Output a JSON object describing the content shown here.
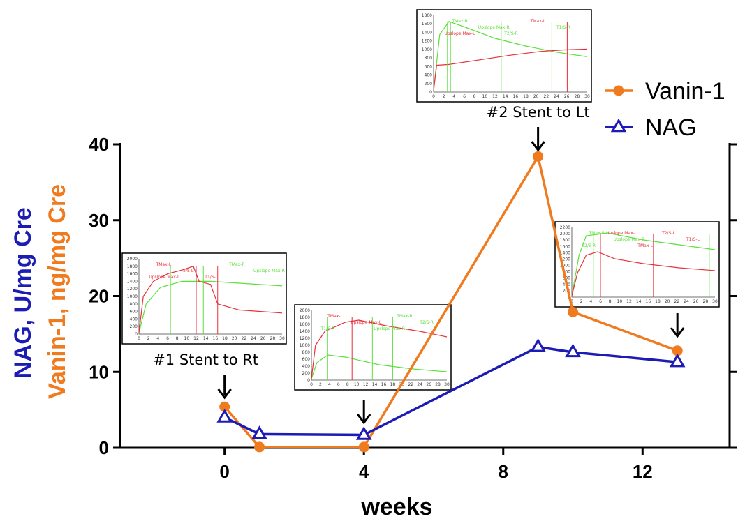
{
  "colors": {
    "vanin": "#F07A1E",
    "nag": "#1C1CB4",
    "axis": "#000000",
    "inset_green": "#5CE03A",
    "inset_red": "#E8303A"
  },
  "chart_data": {
    "type": "line",
    "xlabel": "weeks",
    "ylabel_parts": [
      {
        "text": "NAG, U/mg Cre",
        "color": "#1C1CB4"
      },
      {
        "text": "Vanin-1, ng/mg Cre",
        "color": "#F07A1E"
      }
    ],
    "xlim": [
      -3,
      14.5
    ],
    "ylim": [
      0,
      40
    ],
    "x_ticks": [
      0,
      4,
      8,
      12
    ],
    "y_ticks": [
      0,
      10,
      20,
      30,
      40
    ],
    "legend_position": "top-right",
    "series": [
      {
        "name": "Vanin-1",
        "marker": "circle",
        "color": "#F07A1E",
        "x": [
          0,
          1,
          4,
          9,
          10,
          13
        ],
        "y": [
          5.4,
          0.1,
          0.1,
          38.4,
          17.9,
          12.8
        ]
      },
      {
        "name": "NAG",
        "marker": "triangle-open",
        "color": "#1C1CB4",
        "x": [
          0,
          1,
          4,
          9,
          10,
          13
        ],
        "y": [
          4.0,
          1.8,
          1.7,
          13.3,
          12.6,
          11.3
        ]
      }
    ],
    "annotations": [
      {
        "label": "#1 Stent to Rt",
        "x": 0
      },
      {
        "label": "",
        "x": 4
      },
      {
        "label": "#2 Stent to Lt",
        "x": 9
      },
      {
        "label": "",
        "x": 13
      }
    ],
    "insets": [
      {
        "id": "inset1",
        "y_ticks": [
          "0",
          "200",
          "400",
          "600",
          "800",
          "1000",
          "1200",
          "1400",
          "1600",
          "1800",
          "2000"
        ],
        "x_ticks": [
          "0",
          "2",
          "4",
          "6",
          "8",
          "10",
          "12",
          "14",
          "16",
          "18",
          "20",
          "22",
          "24",
          "26",
          "28",
          "30"
        ],
        "markers": [
          "TMax-L",
          "T2/S-L",
          "T1/S-L",
          "TMax-R",
          "Upslope Max-R",
          "Upslope Max-L"
        ]
      },
      {
        "id": "inset2",
        "y_ticks": [
          "0",
          "200",
          "400",
          "600",
          "800",
          "1000",
          "1200",
          "1400",
          "1600",
          "1800",
          "2000"
        ],
        "x_ticks": [
          "0",
          "2",
          "4",
          "6",
          "8",
          "10",
          "12",
          "14",
          "16",
          "18",
          "20",
          "22",
          "24",
          "26",
          "28",
          "30"
        ],
        "markers": [
          "TMax-L",
          "Upslope Max-L",
          "Upslope Max-R",
          "TMax-R",
          "T2/S-R",
          "T1/S-R"
        ]
      },
      {
        "id": "inset3",
        "y_ticks": [
          "0",
          "200",
          "400",
          "600",
          "800",
          "1000",
          "1200",
          "1400",
          "1600",
          "1800"
        ],
        "x_ticks": [
          "0",
          "2",
          "4",
          "6",
          "8",
          "10",
          "12",
          "14",
          "16",
          "18",
          "20",
          "22",
          "24",
          "26",
          "28",
          "30"
        ],
        "markers": [
          "TMax-R",
          "Upslope Max-R",
          "T2/S-R",
          "TMax-L",
          "T1/S-R",
          "Upslope Max-L"
        ]
      },
      {
        "id": "inset4",
        "y_ticks": [
          "0",
          "200",
          "400",
          "600",
          "800",
          "1000",
          "1200",
          "1400",
          "1600",
          "1800",
          "2000",
          "2200"
        ],
        "x_ticks": [
          "0",
          "2",
          "4",
          "6",
          "8",
          "10",
          "12",
          "14",
          "16",
          "18",
          "20",
          "22",
          "24",
          "26",
          "28",
          "30"
        ],
        "markers": [
          "TMax-R",
          "Upslope Max-R",
          "TMax-L",
          "T2/S-L",
          "T1/S-L",
          "T2/S-R",
          "Upslope Max-L"
        ]
      }
    ]
  }
}
